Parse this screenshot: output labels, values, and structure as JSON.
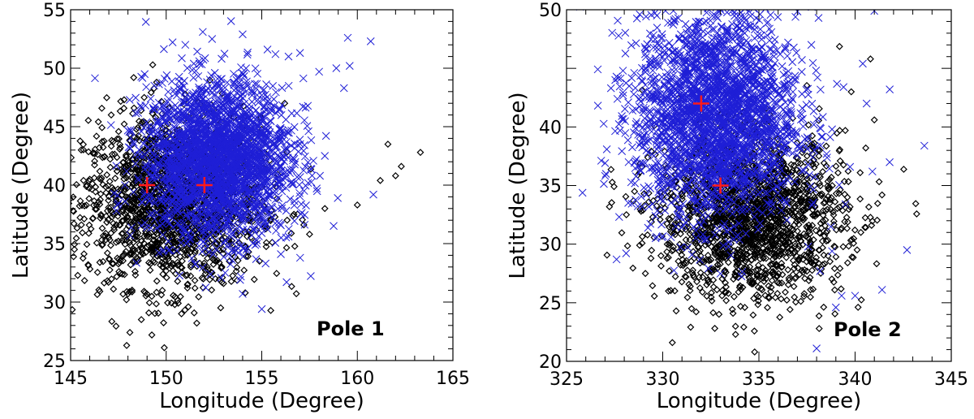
{
  "colors": {
    "black_series": "#000000",
    "blue_series": "#1f1fd6",
    "pole_marker": "#ff1a1a"
  },
  "chart_data": [
    {
      "type": "scatter",
      "panel_label": "Pole 1",
      "xlabel": "Longitude (Degree)",
      "ylabel": "Latitude (Degree)",
      "xlim": [
        145,
        165
      ],
      "ylim": [
        25,
        55
      ],
      "x_ticks": [
        145,
        150,
        155,
        160,
        165
      ],
      "y_ticks": [
        25,
        30,
        35,
        40,
        45,
        50,
        55
      ],
      "x_tick_labels": [
        "145",
        "150",
        "155",
        "160",
        "165"
      ],
      "y_tick_labels": [
        "25",
        "30",
        "35",
        "40",
        "45",
        "50",
        "55"
      ],
      "grid": false,
      "series": [
        {
          "marker": "diamond",
          "color": "#000000",
          "cluster": {
            "cx": 150.3,
            "cy": 38.5,
            "sx": 2.3,
            "sy": 3.6,
            "count": 1800
          },
          "x": [
            145.2,
            146.0,
            146.5,
            147.8,
            148.3,
            149.5,
            148.1,
            149.9,
            150.8,
            151.6,
            154.9,
            157.2,
            158.3,
            160.0,
            161.2,
            161.6,
            162.3,
            163.3,
            162.0,
            157.5,
            156.2,
            149.8,
            148.7,
            148.0,
            152.6
          ],
          "y": [
            34.5,
            40.5,
            43.2,
            47.3,
            49.2,
            48.8,
            27.4,
            26.1,
            29.0,
            28.2,
            37.0,
            36.6,
            38.0,
            38.3,
            40.4,
            43.5,
            41.6,
            42.8,
            40.8,
            35.8,
            47.0,
            31.0,
            28.5,
            30.7,
            33.5
          ]
        },
        {
          "marker": "x",
          "color": "#1f1fd6",
          "cluster": {
            "cx": 152.7,
            "cy": 42.2,
            "sx": 1.9,
            "sy": 3.3,
            "count": 2600
          },
          "x": [
            151.0,
            152.4,
            154.0,
            155.3,
            156.4,
            157.0,
            158.0,
            158.9,
            159.5,
            160.7,
            159.6,
            159.3,
            158.3,
            156.4,
            155.2,
            154.0,
            155.0,
            156.3,
            156.0
          ],
          "y": [
            52.0,
            52.5,
            52.9,
            51.6,
            51.0,
            51.3,
            49.7,
            50.0,
            52.6,
            52.3,
            50.2,
            48.3,
            42.5,
            35.6,
            33.3,
            30.7,
            29.4,
            31.7,
            34.1
          ]
        },
        {
          "marker": "plus",
          "color": "#ff1a1a",
          "x": [
            149.0,
            152.0
          ],
          "y": [
            40.0,
            40.0
          ]
        }
      ]
    },
    {
      "type": "scatter",
      "panel_label": "Pole 2",
      "xlabel": "Longitude (Degree)",
      "ylabel": "Latitude (Degree)",
      "xlim": [
        325,
        345
      ],
      "ylim": [
        20,
        50
      ],
      "x_ticks": [
        325,
        330,
        335,
        340,
        345
      ],
      "y_ticks": [
        20,
        25,
        30,
        35,
        40,
        50
      ],
      "x_tick_labels": [
        "325",
        "330",
        "335",
        "340",
        "345"
      ],
      "y_tick_labels": [
        "20",
        "25",
        "30",
        "35",
        "40",
        "50"
      ],
      "grid": false,
      "series": [
        {
          "marker": "diamond",
          "color": "#000000",
          "cluster": {
            "cx": 334.6,
            "cy": 32.3,
            "sx": 2.4,
            "sy": 3.4,
            "count": 1800
          },
          "x": [
            328.8,
            330.5,
            331.5,
            339.6,
            340.3,
            341.4,
            340.8,
            339.8,
            330.7,
            330.3,
            341.0,
            339.2
          ],
          "y": [
            29.9,
            21.6,
            24.5,
            34.0,
            31.0,
            34.2,
            45.8,
            43.0,
            24.3,
            26.0,
            40.6,
            39.7
          ]
        },
        {
          "marker": "x",
          "color": "#1f1fd6",
          "cluster": {
            "cx": 332.8,
            "cy": 41.0,
            "sx": 2.1,
            "sy": 4.4,
            "count": 2600
          },
          "x": [
            327.6,
            329.5,
            338.0,
            339.3,
            339.0,
            340.0,
            341.4,
            342.7,
            343.6,
            341.0,
            338.1,
            340.4,
            339.4,
            340.6,
            341.8,
            340.9,
            338.8
          ],
          "y": [
            28.7,
            36.1,
            21.1,
            25.6,
            24.6,
            25.6,
            26.1,
            29.5,
            38.4,
            49.9,
            49.3,
            45.4,
            43.4,
            42.0,
            43.2,
            36.2,
            29.4
          ]
        },
        {
          "marker": "plus",
          "color": "#ff1a1a",
          "x": [
            332.0,
            333.0
          ],
          "y": [
            42.0,
            35.0
          ]
        }
      ]
    }
  ]
}
